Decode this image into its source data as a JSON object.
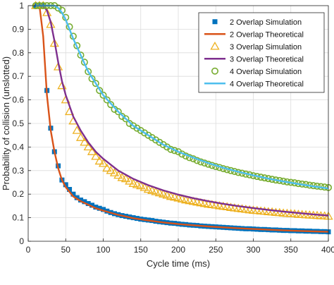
{
  "chart_data": {
    "type": "line",
    "title": "",
    "xlabel": "Cycle time (ms)",
    "ylabel": "Probability of collision (unslotted)",
    "xlim": [
      0,
      400
    ],
    "ylim": [
      0,
      1
    ],
    "xticks": [
      0,
      50,
      100,
      150,
      200,
      250,
      300,
      350,
      400
    ],
    "yticks": [
      0,
      0.1,
      0.2,
      0.3,
      0.4,
      0.5,
      0.6,
      0.7,
      0.8,
      0.9,
      1
    ],
    "xtick_labels": [
      "0",
      "50",
      "100",
      "150",
      "200",
      "250",
      "300",
      "350",
      "400"
    ],
    "ytick_labels": [
      "0",
      "0.1",
      "0.2",
      "0.3",
      "0.4",
      "0.5",
      "0.6",
      "0.7",
      "0.8",
      "0.9",
      "1"
    ],
    "grid": true,
    "legend_position": "top-right",
    "series": [
      {
        "name": "2 Overlap Simulation",
        "kind": "marker",
        "marker": "square",
        "color": "#0072BD",
        "x": [
          10,
          15,
          20,
          25,
          30,
          35,
          40,
          45,
          50,
          55,
          60,
          65,
          70,
          75,
          80,
          85,
          90,
          95,
          100,
          105,
          110,
          115,
          120,
          125,
          130,
          135,
          140,
          145,
          150,
          155,
          160,
          165,
          170,
          175,
          180,
          185,
          190,
          195,
          200,
          205,
          210,
          215,
          220,
          225,
          230,
          235,
          240,
          245,
          250,
          255,
          260,
          265,
          270,
          275,
          280,
          285,
          290,
          295,
          300,
          305,
          310,
          315,
          320,
          325,
          330,
          335,
          340,
          345,
          350,
          355,
          360,
          365,
          370,
          375,
          380,
          385,
          390,
          395,
          400
        ],
        "y": [
          1,
          1,
          1,
          0.64,
          0.48,
          0.38,
          0.32,
          0.26,
          0.24,
          0.22,
          0.2,
          0.185,
          0.175,
          0.168,
          0.16,
          0.153,
          0.145,
          0.14,
          0.135,
          0.128,
          0.122,
          0.117,
          0.113,
          0.109,
          0.106,
          0.103,
          0.1,
          0.097,
          0.094,
          0.092,
          0.09,
          0.088,
          0.085,
          0.083,
          0.081,
          0.079,
          0.077,
          0.076,
          0.074,
          0.072,
          0.071,
          0.069,
          0.068,
          0.067,
          0.065,
          0.064,
          0.063,
          0.062,
          0.061,
          0.06,
          0.059,
          0.058,
          0.057,
          0.056,
          0.055,
          0.054,
          0.053,
          0.053,
          0.052,
          0.051,
          0.05,
          0.05,
          0.049,
          0.048,
          0.048,
          0.047,
          0.046,
          0.046,
          0.045,
          0.045,
          0.044,
          0.044,
          0.043,
          0.043,
          0.042,
          0.042,
          0.041,
          0.041,
          0.04
        ]
      },
      {
        "name": "2 Overlap Theoretical",
        "kind": "line",
        "color": "#D95319",
        "x": [
          10,
          15,
          20,
          25,
          30,
          35,
          40,
          45,
          50,
          60,
          70,
          80,
          90,
          100,
          120,
          140,
          160,
          180,
          200,
          220,
          240,
          260,
          280,
          300,
          320,
          340,
          360,
          380,
          400
        ],
        "y": [
          1,
          1,
          0.87,
          0.62,
          0.47,
          0.38,
          0.31,
          0.26,
          0.23,
          0.19,
          0.17,
          0.155,
          0.14,
          0.13,
          0.112,
          0.098,
          0.088,
          0.08,
          0.073,
          0.068,
          0.063,
          0.059,
          0.055,
          0.052,
          0.049,
          0.046,
          0.044,
          0.042,
          0.04
        ]
      },
      {
        "name": "3 Overlap Simulation",
        "kind": "marker",
        "marker": "triangle",
        "color": "#EDB120",
        "x": [
          10,
          15,
          20,
          25,
          30,
          35,
          40,
          45,
          50,
          55,
          60,
          65,
          70,
          75,
          80,
          85,
          90,
          95,
          100,
          105,
          110,
          115,
          120,
          125,
          130,
          135,
          140,
          145,
          150,
          155,
          160,
          165,
          170,
          175,
          180,
          185,
          190,
          195,
          200,
          205,
          210,
          215,
          220,
          225,
          230,
          235,
          240,
          245,
          250,
          255,
          260,
          265,
          270,
          275,
          280,
          285,
          290,
          295,
          300,
          305,
          310,
          315,
          320,
          325,
          330,
          335,
          340,
          345,
          350,
          355,
          360,
          365,
          370,
          375,
          380,
          385,
          390,
          395,
          400
        ],
        "y": [
          1,
          1,
          1,
          0.97,
          0.92,
          0.84,
          0.74,
          0.66,
          0.6,
          0.55,
          0.51,
          0.47,
          0.44,
          0.42,
          0.4,
          0.38,
          0.36,
          0.34,
          0.33,
          0.31,
          0.3,
          0.29,
          0.28,
          0.27,
          0.265,
          0.255,
          0.245,
          0.24,
          0.235,
          0.228,
          0.22,
          0.215,
          0.21,
          0.205,
          0.2,
          0.195,
          0.19,
          0.187,
          0.183,
          0.179,
          0.175,
          0.172,
          0.169,
          0.166,
          0.163,
          0.16,
          0.157,
          0.155,
          0.153,
          0.15,
          0.148,
          0.146,
          0.143,
          0.141,
          0.139,
          0.137,
          0.135,
          0.133,
          0.131,
          0.13,
          0.128,
          0.127,
          0.125,
          0.124,
          0.122,
          0.121,
          0.119,
          0.118,
          0.117,
          0.116,
          0.114,
          0.113,
          0.112,
          0.111,
          0.11,
          0.109,
          0.108,
          0.107,
          0.106
        ]
      },
      {
        "name": "3 Overlap Theoretical",
        "kind": "line",
        "color": "#7E2F8E",
        "x": [
          10,
          20,
          25,
          30,
          35,
          40,
          45,
          50,
          60,
          70,
          80,
          90,
          100,
          120,
          140,
          160,
          180,
          200,
          220,
          240,
          260,
          280,
          300,
          320,
          340,
          360,
          380,
          400
        ],
        "y": [
          1,
          1,
          0.98,
          0.93,
          0.85,
          0.76,
          0.68,
          0.62,
          0.53,
          0.47,
          0.42,
          0.38,
          0.35,
          0.3,
          0.265,
          0.238,
          0.216,
          0.198,
          0.183,
          0.17,
          0.159,
          0.149,
          0.141,
          0.133,
          0.126,
          0.12,
          0.114,
          0.109
        ]
      },
      {
        "name": "4 Overlap Simulation",
        "kind": "marker",
        "marker": "circle",
        "color": "#77AC30",
        "x": [
          10,
          15,
          20,
          25,
          30,
          35,
          40,
          45,
          50,
          55,
          60,
          65,
          70,
          75,
          80,
          85,
          90,
          95,
          100,
          105,
          110,
          115,
          120,
          125,
          130,
          135,
          140,
          145,
          150,
          155,
          160,
          165,
          170,
          175,
          180,
          185,
          190,
          195,
          200,
          205,
          210,
          215,
          220,
          225,
          230,
          235,
          240,
          245,
          250,
          255,
          260,
          265,
          270,
          275,
          280,
          285,
          290,
          295,
          300,
          305,
          310,
          315,
          320,
          325,
          330,
          335,
          340,
          345,
          350,
          355,
          360,
          365,
          370,
          375,
          380,
          385,
          390,
          395,
          400
        ],
        "y": [
          1,
          1,
          1,
          1,
          1,
          1,
          0.99,
          0.98,
          0.95,
          0.91,
          0.87,
          0.83,
          0.79,
          0.76,
          0.72,
          0.69,
          0.67,
          0.64,
          0.62,
          0.6,
          0.58,
          0.56,
          0.55,
          0.53,
          0.52,
          0.5,
          0.49,
          0.48,
          0.47,
          0.46,
          0.45,
          0.44,
          0.43,
          0.42,
          0.41,
          0.4,
          0.39,
          0.385,
          0.38,
          0.37,
          0.362,
          0.355,
          0.35,
          0.343,
          0.337,
          0.332,
          0.327,
          0.322,
          0.317,
          0.313,
          0.308,
          0.304,
          0.3,
          0.296,
          0.292,
          0.289,
          0.285,
          0.282,
          0.278,
          0.275,
          0.272,
          0.269,
          0.266,
          0.263,
          0.26,
          0.258,
          0.255,
          0.252,
          0.25,
          0.248,
          0.245,
          0.243,
          0.241,
          0.238,
          0.236,
          0.234,
          0.232,
          0.23,
          0.228
        ]
      },
      {
        "name": "4 Overlap Theoretical",
        "kind": "line",
        "color": "#4DBEEE",
        "x": [
          10,
          30,
          35,
          40,
          45,
          50,
          60,
          70,
          80,
          90,
          100,
          120,
          140,
          160,
          180,
          200,
          220,
          240,
          260,
          280,
          300,
          320,
          340,
          360,
          380,
          400
        ],
        "y": [
          1,
          1,
          1,
          0.99,
          0.97,
          0.94,
          0.86,
          0.79,
          0.72,
          0.67,
          0.62,
          0.55,
          0.49,
          0.45,
          0.41,
          0.38,
          0.355,
          0.332,
          0.312,
          0.295,
          0.28,
          0.266,
          0.254,
          0.243,
          0.233,
          0.224
        ]
      }
    ]
  }
}
